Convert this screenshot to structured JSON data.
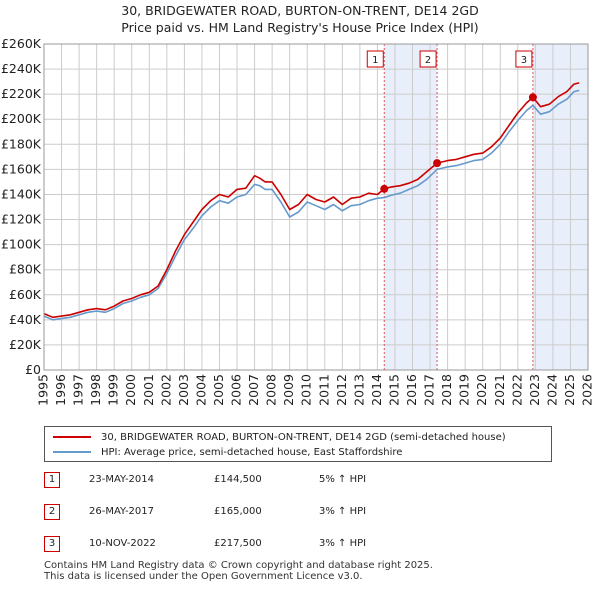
{
  "title_line1": "30, BRIDGEWATER ROAD, BURTON-ON-TRENT, DE14 2GD",
  "title_line2": "Price paid vs. HM Land Registry's House Price Index (HPI)",
  "colors": {
    "property": "#cc0000",
    "hpi": "#6699cc",
    "shade": "#e8eefa",
    "grid": "#cccccc",
    "vline": "#dd5555"
  },
  "chart_data": {
    "type": "line",
    "title": "30, BRIDGEWATER ROAD, BURTON-ON-TRENT, DE14 2GD — Price paid vs. HM Land Registry's House Price Index (HPI)",
    "xlabel": "",
    "ylabel": "",
    "xlim": [
      1995,
      2026
    ],
    "ylim": [
      0,
      260000
    ],
    "y_ticks": [
      0,
      20000,
      40000,
      60000,
      80000,
      100000,
      120000,
      140000,
      160000,
      180000,
      200000,
      220000,
      240000,
      260000
    ],
    "y_tick_labels": [
      "£0",
      "£20K",
      "£40K",
      "£60K",
      "£80K",
      "£100K",
      "£120K",
      "£140K",
      "£160K",
      "£180K",
      "£200K",
      "£220K",
      "£240K",
      "£260K"
    ],
    "x_ticks": [
      1995,
      1996,
      1997,
      1998,
      1999,
      2000,
      2001,
      2002,
      2003,
      2004,
      2005,
      2006,
      2007,
      2008,
      2009,
      2010,
      2011,
      2012,
      2013,
      2014,
      2015,
      2016,
      2017,
      2018,
      2019,
      2020,
      2021,
      2022,
      2023,
      2024,
      2025,
      2026
    ],
    "shaded_ranges": [
      [
        2014.39,
        2017.4
      ],
      [
        2022.86,
        2026
      ]
    ],
    "series": [
      {
        "name": "30, BRIDGEWATER ROAD, BURTON-ON-TRENT, DE14 2GD (semi-detached house)",
        "x": [
          1995,
          1995.5,
          1996,
          1996.5,
          1997,
          1997.5,
          1998,
          1998.5,
          1999,
          1999.5,
          2000,
          2000.5,
          2001,
          2001.5,
          2002,
          2002.5,
          2003,
          2003.5,
          2004,
          2004.5,
          2005,
          2005.5,
          2006,
          2006.5,
          2007,
          2007.3,
          2007.6,
          2008,
          2008.5,
          2009,
          2009.5,
          2010,
          2010.5,
          2011,
          2011.5,
          2012,
          2012.5,
          2013,
          2013.5,
          2014,
          2014.39,
          2014.8,
          2015.3,
          2015.8,
          2016.3,
          2016.8,
          2017.4,
          2018,
          2018.5,
          2019,
          2019.5,
          2020,
          2020.5,
          2021,
          2021.5,
          2022,
          2022.5,
          2022.86,
          2023.3,
          2023.8,
          2024.3,
          2024.8,
          2025.2,
          2025.5
        ],
        "y": [
          45000,
          42000,
          43000,
          44000,
          46000,
          48000,
          49000,
          48000,
          51000,
          55000,
          57000,
          60000,
          62000,
          67000,
          80000,
          95000,
          108000,
          118000,
          128000,
          135000,
          140000,
          138000,
          144000,
          145000,
          155000,
          153000,
          150000,
          150000,
          140000,
          128000,
          132000,
          140000,
          136000,
          134000,
          138000,
          132000,
          137000,
          138000,
          141000,
          140000,
          144500,
          146000,
          147000,
          149000,
          152000,
          158000,
          165000,
          167000,
          168000,
          170000,
          172000,
          173000,
          178000,
          185000,
          195000,
          205000,
          213000,
          217500,
          210000,
          212000,
          218000,
          222000,
          228000,
          229000
        ]
      },
      {
        "name": "HPI: Average price, semi-detached house, East Staffordshire",
        "x": [
          1995,
          1995.5,
          1996,
          1996.5,
          1997,
          1997.5,
          1998,
          1998.5,
          1999,
          1999.5,
          2000,
          2000.5,
          2001,
          2001.5,
          2002,
          2002.5,
          2003,
          2003.5,
          2004,
          2004.5,
          2005,
          2005.5,
          2006,
          2006.5,
          2007,
          2007.3,
          2007.6,
          2008,
          2008.5,
          2009,
          2009.5,
          2010,
          2010.5,
          2011,
          2011.5,
          2012,
          2012.5,
          2013,
          2013.5,
          2014,
          2014.39,
          2014.8,
          2015.3,
          2015.8,
          2016.3,
          2016.8,
          2017.4,
          2018,
          2018.5,
          2019,
          2019.5,
          2020,
          2020.5,
          2021,
          2021.5,
          2022,
          2022.5,
          2022.86,
          2023.3,
          2023.8,
          2024.3,
          2024.8,
          2025.2,
          2025.5
        ],
        "y": [
          43000,
          40000,
          41000,
          42000,
          44000,
          46000,
          47000,
          46000,
          49000,
          53000,
          55000,
          58000,
          60000,
          65000,
          77000,
          91000,
          104000,
          113000,
          123000,
          130000,
          135000,
          133000,
          138000,
          140000,
          148000,
          147000,
          144000,
          144000,
          134000,
          122000,
          126000,
          134000,
          131000,
          128000,
          132000,
          127000,
          131000,
          132000,
          135000,
          137000,
          137500,
          139500,
          141000,
          144000,
          147000,
          152000,
          160000,
          162000,
          163000,
          165000,
          167000,
          168000,
          173000,
          180000,
          190000,
          199000,
          207000,
          211000,
          204000,
          206000,
          212000,
          216000,
          222000,
          223000
        ]
      }
    ],
    "transactions": [
      {
        "num": "1",
        "x": 2014.39,
        "y": 144500
      },
      {
        "num": "2",
        "x": 2017.4,
        "y": 165000
      },
      {
        "num": "3",
        "x": 2022.86,
        "y": 217500
      }
    ]
  },
  "legend": {
    "property_label": "30, BRIDGEWATER ROAD, BURTON-ON-TRENT, DE14 2GD (semi-detached house)",
    "hpi_label": "HPI: Average price, semi-detached house, East Staffordshire"
  },
  "transactions_table": [
    {
      "num": "1",
      "date": "23-MAY-2014",
      "price": "£144,500",
      "hpi": "5% ↑ HPI"
    },
    {
      "num": "2",
      "date": "26-MAY-2017",
      "price": "£165,000",
      "hpi": "3% ↑ HPI"
    },
    {
      "num": "3",
      "date": "10-NOV-2022",
      "price": "£217,500",
      "hpi": "3% ↑ HPI"
    }
  ],
  "footer_line1": "Contains HM Land Registry data © Crown copyright and database right 2025.",
  "footer_line2": "This data is licensed under the Open Government Licence v3.0."
}
